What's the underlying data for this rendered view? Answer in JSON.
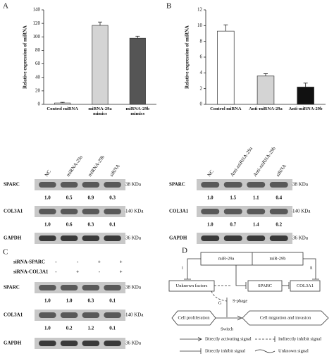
{
  "panels": [
    "A",
    "B",
    "C",
    "D"
  ],
  "chart_data": [
    {
      "type": "bar",
      "y_label": "Relative expression of miRNA",
      "categories": [
        "Control miRNA",
        "miRNA-29a mimics",
        "miRNA-29b mimics"
      ],
      "values": [
        2,
        117,
        98
      ],
      "errors": [
        1,
        5,
        3
      ],
      "colors": [
        "#ffffff",
        "#d4d4d4",
        "#555555"
      ],
      "ylim": [
        0,
        140
      ],
      "yticks": [
        0,
        20,
        40,
        60,
        80,
        100,
        120,
        140
      ]
    },
    {
      "type": "bar",
      "y_label": "Relative expression of miRNA",
      "categories": [
        "Control miRNA",
        "Anti-miRNA-29a",
        "Anti-miRNA-29b"
      ],
      "values": [
        9.3,
        3.6,
        2.2
      ],
      "errors": [
        0.8,
        0.3,
        0.5
      ],
      "colors": [
        "#ffffff",
        "#d4d4d4",
        "#111111"
      ],
      "ylim": [
        0,
        12
      ],
      "yticks": [
        0,
        2,
        4,
        6,
        8,
        10,
        12
      ]
    }
  ],
  "blots": [
    {
      "lanes": [
        "NC",
        "miRNA-29a",
        "miRNA-29b",
        "siRNA"
      ],
      "rows": [
        {
          "protein": "SPARC",
          "size": "38 KDa",
          "quant": [
            "1.0",
            "0.5",
            "0.9",
            "0.3"
          ]
        },
        {
          "protein": "COL3A1",
          "size": "140 KDa",
          "quant": [
            "1.0",
            "0.6",
            "0.3",
            "0.1"
          ]
        },
        {
          "protein": "GAPDH",
          "size": "36 KDa"
        }
      ]
    },
    {
      "lanes": [
        "NC",
        "Anti-miRNA-29a",
        "Anti-miRNA-29b",
        "siRNA"
      ],
      "rows": [
        {
          "protein": "SPARC",
          "size": "38 KDa",
          "quant": [
            "1.0",
            "1.5",
            "1.1",
            "0.4"
          ]
        },
        {
          "protein": "COL3A1",
          "size": "140 KDa",
          "quant": [
            "1.0",
            "0.7",
            "1.4",
            "0.2"
          ]
        },
        {
          "protein": "GAPDH",
          "size": "36 KDa"
        }
      ]
    },
    {
      "treatments": [
        {
          "name": "siRNA-SPARC",
          "signs": [
            "-",
            "-",
            "+",
            "+"
          ]
        },
        {
          "name": "siRNA-COL3A1",
          "signs": [
            "-",
            "+",
            "-",
            "+"
          ]
        }
      ],
      "rows": [
        {
          "protein": "SPARC",
          "size": "38 KDa",
          "quant": [
            "1.0",
            "1.0",
            "0.3",
            "0.1"
          ]
        },
        {
          "protein": "COL3A1",
          "size": "140 KDa",
          "quant": [
            "1.0",
            "0.2",
            "1.2",
            "0.1"
          ]
        },
        {
          "protein": "GAPDH",
          "size": "36 KDa"
        }
      ]
    }
  ],
  "diagram": {
    "nodes": [
      "miR-29a",
      "miR-29b",
      "Unknown factors",
      "SPARC",
      "COL3A1",
      "S-phage",
      "G",
      "Cell proliferation",
      "Switch",
      "Cell migration and invasion"
    ],
    "markers": [
      "i",
      "ii"
    ],
    "legend": [
      "Directly activating signal",
      "Indirectly inhibit signal",
      "Directly inhibit signal",
      "Unknown signal"
    ]
  }
}
